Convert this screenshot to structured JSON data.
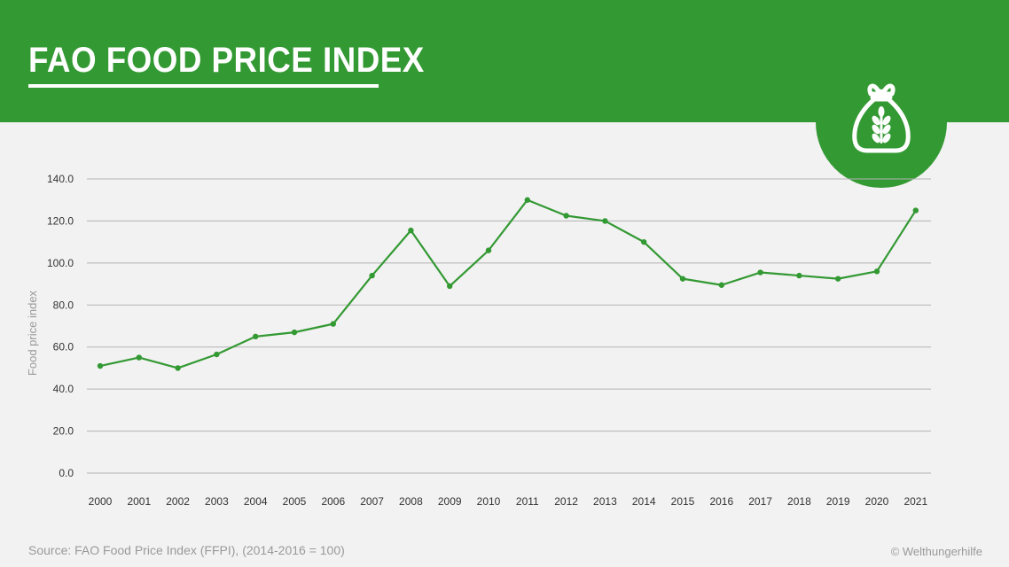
{
  "header": {
    "title": "FAO FOOD PRICE INDEX",
    "icon": "grain-sack-icon",
    "color": "#339933"
  },
  "footer": {
    "source": "Source: FAO Food Price Index (FFPI), (2014-2016 = 100)",
    "copyright": "© Welthungerhilfe"
  },
  "chart_data": {
    "type": "line",
    "title": "",
    "xlabel": "",
    "ylabel": "Food price index",
    "categories": [
      "2000",
      "2001",
      "2002",
      "2003",
      "2004",
      "2005",
      "2006",
      "2007",
      "2008",
      "2009",
      "2010",
      "2011",
      "2012",
      "2013",
      "2014",
      "2015",
      "2016",
      "2017",
      "2018",
      "2019",
      "2020",
      "2021"
    ],
    "series": [
      {
        "values": [
          51.0,
          55.0,
          50.0,
          56.5,
          65.0,
          67.0,
          71.0,
          94.0,
          115.5,
          89.0,
          106.0,
          130.0,
          122.5,
          120.0,
          110.0,
          92.5,
          89.5,
          95.5,
          94.0,
          92.5,
          96.0,
          125.0
        ],
        "color": "#339933"
      }
    ],
    "ylim": [
      0,
      140
    ],
    "yticks": [
      "0.0",
      "20.0",
      "40.0",
      "60.0",
      "80.0",
      "100.0",
      "120.0",
      "140.0"
    ],
    "grid": true,
    "legend": "none"
  }
}
